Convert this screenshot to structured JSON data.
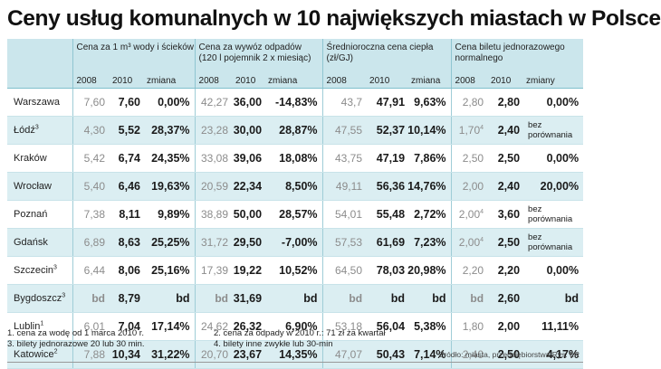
{
  "title": "Ceny usług komunalnych w 10 największych miastach w Polsce",
  "headers": {
    "water": "Cena za 1 m³ wody i ścieków",
    "waste": "Cena za wywóz odpadów (120 l pojemnik 2 x miesiąc)",
    "heat": "Średnioroczna cena ciepła (zł/GJ)",
    "ticket": "Cena biletu jednorazowego normalnego",
    "y2008": "2008",
    "y2010": "2010",
    "change": "zmiana",
    "changes": "zmiany"
  },
  "rows": [
    {
      "city": "Warszawa",
      "sup": "",
      "w08": "7,60",
      "w10": "7,60",
      "wc": "0,00%",
      "o08": "42,27",
      "o10": "36,00",
      "oc": "-14,83%",
      "h08": "43,7",
      "h10": "47,91",
      "hc": "9,63%",
      "t08": "2,80",
      "t08sup": "",
      "t10": "2,80",
      "tc": "0,00%"
    },
    {
      "city": "Łódź",
      "sup": "3",
      "w08": "4,30",
      "w10": "5,52",
      "wc": "28,37%",
      "o08": "23,28",
      "o10": "30,00",
      "oc": "28,87%",
      "h08": "47,55",
      "h10": "52,37",
      "hc": "10,14%",
      "t08": "1,70",
      "t08sup": "4",
      "t10": "2,40",
      "tc": "bez porównania"
    },
    {
      "city": "Kraków",
      "sup": "",
      "w08": "5,42",
      "w10": "6,74",
      "wc": "24,35%",
      "o08": "33,08",
      "o10": "39,06",
      "oc": "18,08%",
      "h08": "43,75",
      "h10": "47,19",
      "hc": "7,86%",
      "t08": "2,50",
      "t08sup": "",
      "t10": "2,50",
      "tc": "0,00%"
    },
    {
      "city": "Wrocław",
      "sup": "",
      "w08": "5,40",
      "w10": "6,46",
      "wc": "19,63%",
      "o08": "20,59",
      "o10": "22,34",
      "oc": "8,50%",
      "h08": "49,11",
      "h10": "56,36",
      "hc": "14,76%",
      "t08": "2,00",
      "t08sup": "",
      "t10": "2,40",
      "tc": "20,00%"
    },
    {
      "city": "Poznań",
      "sup": "",
      "w08": "7,38",
      "w10": "8,11",
      "wc": "9,89%",
      "o08": "38,89",
      "o10": "50,00",
      "oc": "28,57%",
      "h08": "54,01",
      "h10": "55,48",
      "hc": "2,72%",
      "t08": "2,00",
      "t08sup": "4",
      "t10": "3,60",
      "tc": "bez porównania"
    },
    {
      "city": "Gdańsk",
      "sup": "",
      "w08": "6,89",
      "w10": "8,63",
      "wc": "25,25%",
      "o08": "31,72",
      "o10": "29,50",
      "oc": "-7,00%",
      "h08": "57,53",
      "h10": "61,69",
      "hc": "7,23%",
      "t08": "2,00",
      "t08sup": "4",
      "t10": "2,50",
      "tc": "bez porównania"
    },
    {
      "city": "Szczecin",
      "sup": "3",
      "w08": "6,44",
      "w10": "8,06",
      "wc": "25,16%",
      "o08": "17,39",
      "o10": "19,22",
      "oc": "10,52%",
      "h08": "64,50",
      "h10": "78,03",
      "hc": "20,98%",
      "t08": "2,20",
      "t08sup": "",
      "t10": "2,20",
      "tc": "0,00%"
    },
    {
      "city": "Bygdoszcz",
      "sup": "3",
      "w08": "bd",
      "w10": "8,79",
      "wc": "bd",
      "o08": "bd",
      "o10": "31,69",
      "oc": "bd",
      "h08": "bd",
      "h10": "bd",
      "hc": "bd",
      "t08": "bd",
      "t08sup": "",
      "t10": "2,60",
      "tc": "bd"
    },
    {
      "city": "Lublin",
      "sup": "1",
      "w08": "6,01",
      "w10": "7,04",
      "wc": "17,14%",
      "o08": "24,62",
      "o10": "26,32",
      "oc": "6,90%",
      "h08": "53,18",
      "h10": "56,04",
      "hc": "5,38%",
      "t08": "1,80",
      "t08sup": "",
      "t10": "2,00",
      "tc": "11,11%"
    },
    {
      "city": "Katowice",
      "sup": "2",
      "w08": "7,88",
      "w10": "10,34",
      "wc": "31,22%",
      "o08": "20,70",
      "o10": "23,67",
      "oc": "14,35%",
      "h08": "47,07",
      "h10": "50,43",
      "hc": "7,14%",
      "t08": "2,40",
      "t08sup": "",
      "t10": "2,50",
      "tc": "4,17%"
    }
  ],
  "footnotes": {
    "f1": "1. cena za wodę od 1 marca 2010 r.",
    "f2": "2. cena za odpady w 2010 r.: 71 zł za kwartał",
    "f3": "3. bilety jednorazowe 20 lub 30 min.",
    "f4": "4. bilety inne zwykłe lub 30-min"
  },
  "source": "Źródło: miasta, przedsiębiorstwa    Rys. ŁR"
}
